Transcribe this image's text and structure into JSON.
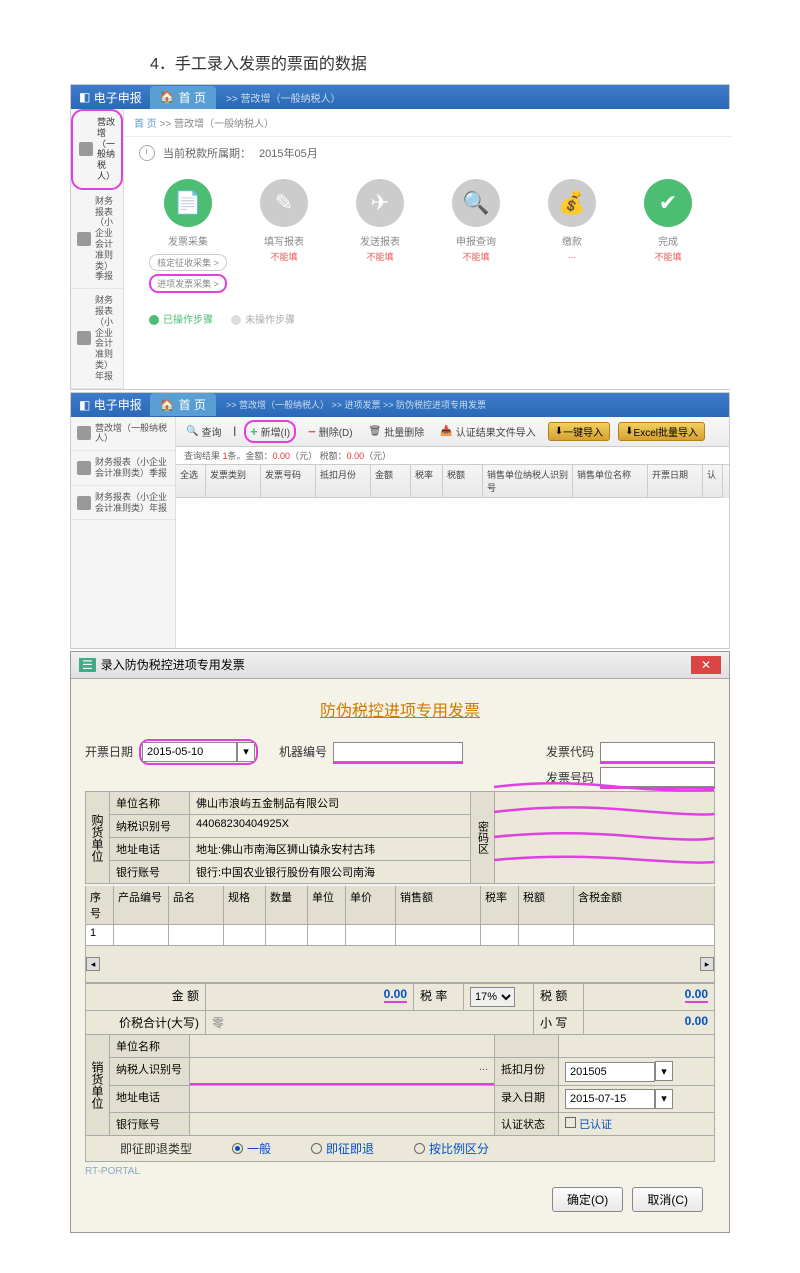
{
  "step_title": "4．手工录入发票的票面的数据",
  "app_title": "电子申报",
  "home_tab": "首 页",
  "crumb_suffix": ">> 营改增（一般纳税人）",
  "sidebar": {
    "items": [
      {
        "label": "营改增（一般纳税人）"
      },
      {
        "label": "财务报表（小企业会计准则类）季报"
      },
      {
        "label": "财务报表（小企业会计准则类）年报"
      }
    ]
  },
  "period": {
    "label": "当前税款所属期：",
    "value": "2015年05月"
  },
  "icons": [
    {
      "label": "发票采集",
      "status": "",
      "cls": "ic-green",
      "glyph": "📄",
      "sublinks": [
        "核定征收采集 >",
        "进项发票采集 >"
      ]
    },
    {
      "label": "填写报表",
      "status": "不能填",
      "cls": "ic-grey",
      "glyph": "✎"
    },
    {
      "label": "发送报表",
      "status": "不能填",
      "cls": "ic-grey",
      "glyph": "✈"
    },
    {
      "label": "申报查询",
      "status": "不能填",
      "cls": "ic-grey",
      "glyph": "🔍"
    },
    {
      "label": "缴款",
      "status": "…",
      "cls": "ic-grey",
      "glyph": "💰"
    },
    {
      "label": "完成",
      "status": "不能填",
      "cls": "ic-green",
      "glyph": "✔"
    }
  ],
  "legend": {
    "done": "已操作步骤",
    "pending": "未操作步骤"
  },
  "screen2": {
    "crumb": ">> 营改增（一般纳税人） >> 进项发票 >> 防伪税控进项专用发票",
    "toolbar": {
      "query": "查询",
      "add": "新增(I)",
      "del": "删除(D)",
      "batch": "批量删除",
      "import": "认证结果文件导入",
      "one": "一键导入",
      "excel": "Excel批量导入"
    },
    "status": {
      "found_l": "查询结果 ",
      "found_n": "1",
      "found_suf": "条。金额：",
      "amt": "0.00",
      "yuan": "（元）",
      "tax_l": "税额：",
      "tax": "0.00"
    },
    "cols": [
      "全选",
      "发票类别",
      "发票号码",
      "抵扣月份",
      "金额",
      "税率",
      "税额",
      "销售单位纳税人识别号",
      "销售单位名称",
      "开票日期",
      "认"
    ]
  },
  "dlg": {
    "title": "录入防伪税控进项专用发票",
    "heading": "防伪税控进项专用发票",
    "date_l": "开票日期",
    "date_v": "2015-05-10",
    "machine_l": "机器编号",
    "code_l": "发票代码",
    "num_l": "发票号码",
    "buyer_l": "购货单位",
    "buyer": {
      "name_l": "单位名称",
      "name_v": "佛山市浪屿五金制品有限公司",
      "tax_l": "纳税识别号",
      "tax_v": "44068230404925X",
      "addr_l": "地址电话",
      "addr_v": "地址:佛山市南海区狮山镇永安村古玮",
      "bank_l": "银行账号",
      "bank_v": "银行:中国农业银行股份有限公司南海"
    },
    "pw_l": "密码区",
    "cols": {
      "seq": "序号",
      "code": "产品编号",
      "name": "品名",
      "spec": "规格",
      "qty": "数量",
      "unit": "单位",
      "price": "单价",
      "sales": "销售额",
      "rate": "税率",
      "tax": "税额",
      "incl": "含税金额"
    },
    "row1_seq": "1",
    "amt_l": "金 额",
    "amt_v": "0.00",
    "rate_l": "税 率",
    "rate_v": "17%",
    "tax_l": "税 额",
    "tax_v": "0.00",
    "total_cn_l": "价税合计(大写)",
    "total_cn_v": "零",
    "total_l": "小 写",
    "total_v": "0.00",
    "seller_l": "销货单位",
    "seller": {
      "name_l": "单位名称",
      "tax_l": "纳税人识别号",
      "addr_l": "地址电话",
      "bank_l": "银行账号"
    },
    "dk_l": "抵扣月份",
    "dk_v": "201505",
    "rec_l": "录入日期",
    "rec_v": "2015-07-15",
    "cert_l": "认证状态",
    "cert_v": "已认证",
    "refund_l": "即征即退类型",
    "opts": [
      "一般",
      "即征即退",
      "按比例区分"
    ],
    "portal": "RT-PORTAL",
    "ok": "确定(O)",
    "cancel": "取消(C)"
  }
}
